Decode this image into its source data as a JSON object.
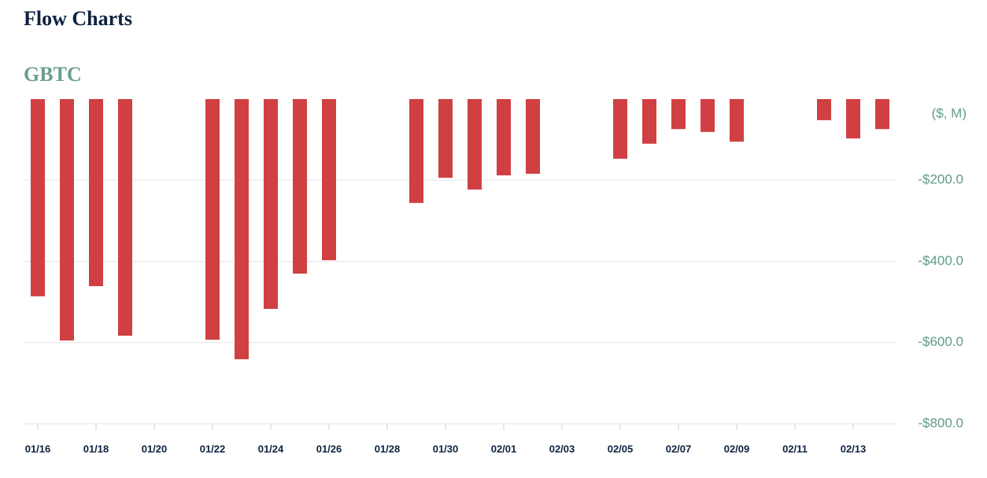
{
  "page_title": "Flow Charts",
  "chart_data": {
    "type": "bar",
    "title": "GBTC",
    "y_label": "($, M)",
    "categories": [
      "01/16",
      null,
      "01/18",
      null,
      "01/20",
      null,
      "01/22",
      null,
      "01/24",
      null,
      "01/26",
      null,
      "01/28",
      null,
      "01/30",
      null,
      "02/01",
      null,
      "02/03",
      null,
      "02/05",
      null,
      "02/07",
      null,
      "02/09",
      null,
      "02/11",
      null,
      "02/13",
      null
    ],
    "values": [
      -486,
      -595,
      -461,
      -583,
      null,
      null,
      -593,
      -641,
      -517,
      -430,
      -397,
      null,
      null,
      -256,
      -194,
      -223,
      -188,
      -184,
      null,
      null,
      -147,
      -110,
      -74,
      -81,
      -105,
      null,
      null,
      -52,
      -97,
      -74
    ],
    "color": "#d04043",
    "ylim": [
      -800,
      0
    ],
    "yticks": [
      {
        "value": -200,
        "label": "-$200.0"
      },
      {
        "value": -400,
        "label": "-$400.0"
      },
      {
        "value": -600,
        "label": "-$600.0"
      },
      {
        "value": -800,
        "label": "-$800.0"
      }
    ],
    "grid": true
  }
}
